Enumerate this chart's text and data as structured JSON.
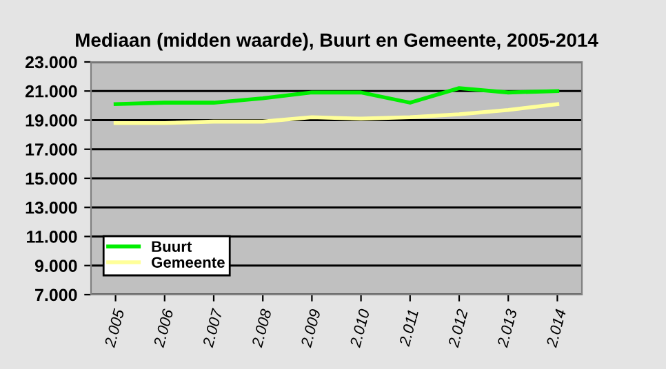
{
  "chart_data": {
    "type": "line",
    "title": "Mediaan (midden waarde), Buurt en Gemeente, 2005-2014",
    "categories": [
      "2.005",
      "2.006",
      "2.007",
      "2.008",
      "2.009",
      "2.010",
      "2.011",
      "2.012",
      "2.013",
      "2.014"
    ],
    "series": [
      {
        "name": "Buurt",
        "color": "#00ee00",
        "values": [
          20100,
          20200,
          20200,
          20500,
          20900,
          20900,
          20200,
          21200,
          20900,
          21000
        ]
      },
      {
        "name": "Gemeente",
        "color": "#ffff99",
        "values": [
          18800,
          18800,
          18900,
          18900,
          19200,
          19100,
          19200,
          19400,
          19700,
          20100
        ]
      }
    ],
    "ylim": [
      7000,
      23000
    ],
    "yticks": [
      {
        "value": 7000,
        "label": "7.000"
      },
      {
        "value": 9000,
        "label": "9.000"
      },
      {
        "value": 11000,
        "label": "11.000"
      },
      {
        "value": 13000,
        "label": "13.000"
      },
      {
        "value": 15000,
        "label": "15.000"
      },
      {
        "value": 17000,
        "label": "17.000"
      },
      {
        "value": 19000,
        "label": "19.000"
      },
      {
        "value": 21000,
        "label": "21.000"
      },
      {
        "value": 23000,
        "label": "23.000"
      }
    ],
    "grid": "y",
    "legend": "bottom left",
    "marker": "none",
    "line_style": "solid"
  }
}
